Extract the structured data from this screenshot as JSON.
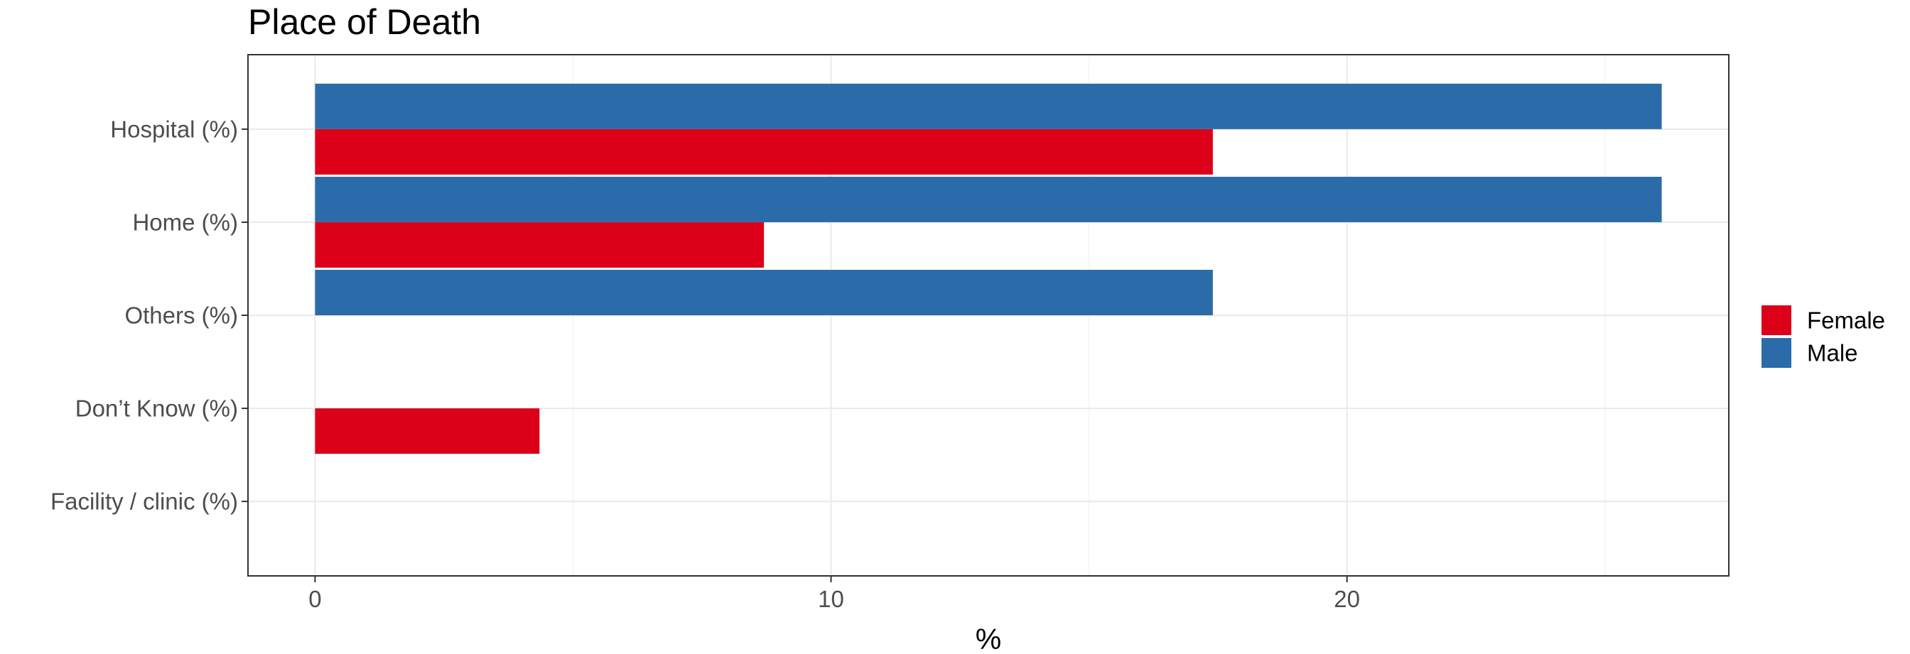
{
  "chart_data": {
    "type": "bar",
    "orientation": "horizontal",
    "title": "Place of Death",
    "xlabel": "%",
    "ylabel": "",
    "categories": [
      "Hospital (%)",
      "Home (%)",
      "Others (%)",
      "Don’t Know (%)",
      "Facility / clinic (%)"
    ],
    "series": [
      {
        "name": "Female",
        "color": "#dc0019",
        "values": [
          17.4,
          8.7,
          0,
          4.35,
          0
        ]
      },
      {
        "name": "Male",
        "color": "#2c6ba9",
        "values": [
          26.1,
          26.1,
          17.4,
          0,
          0
        ]
      }
    ],
    "xlim": [
      -1.3,
      27.4
    ],
    "xticks": [
      0,
      10,
      20
    ],
    "grid": true,
    "legend_position": "right"
  }
}
